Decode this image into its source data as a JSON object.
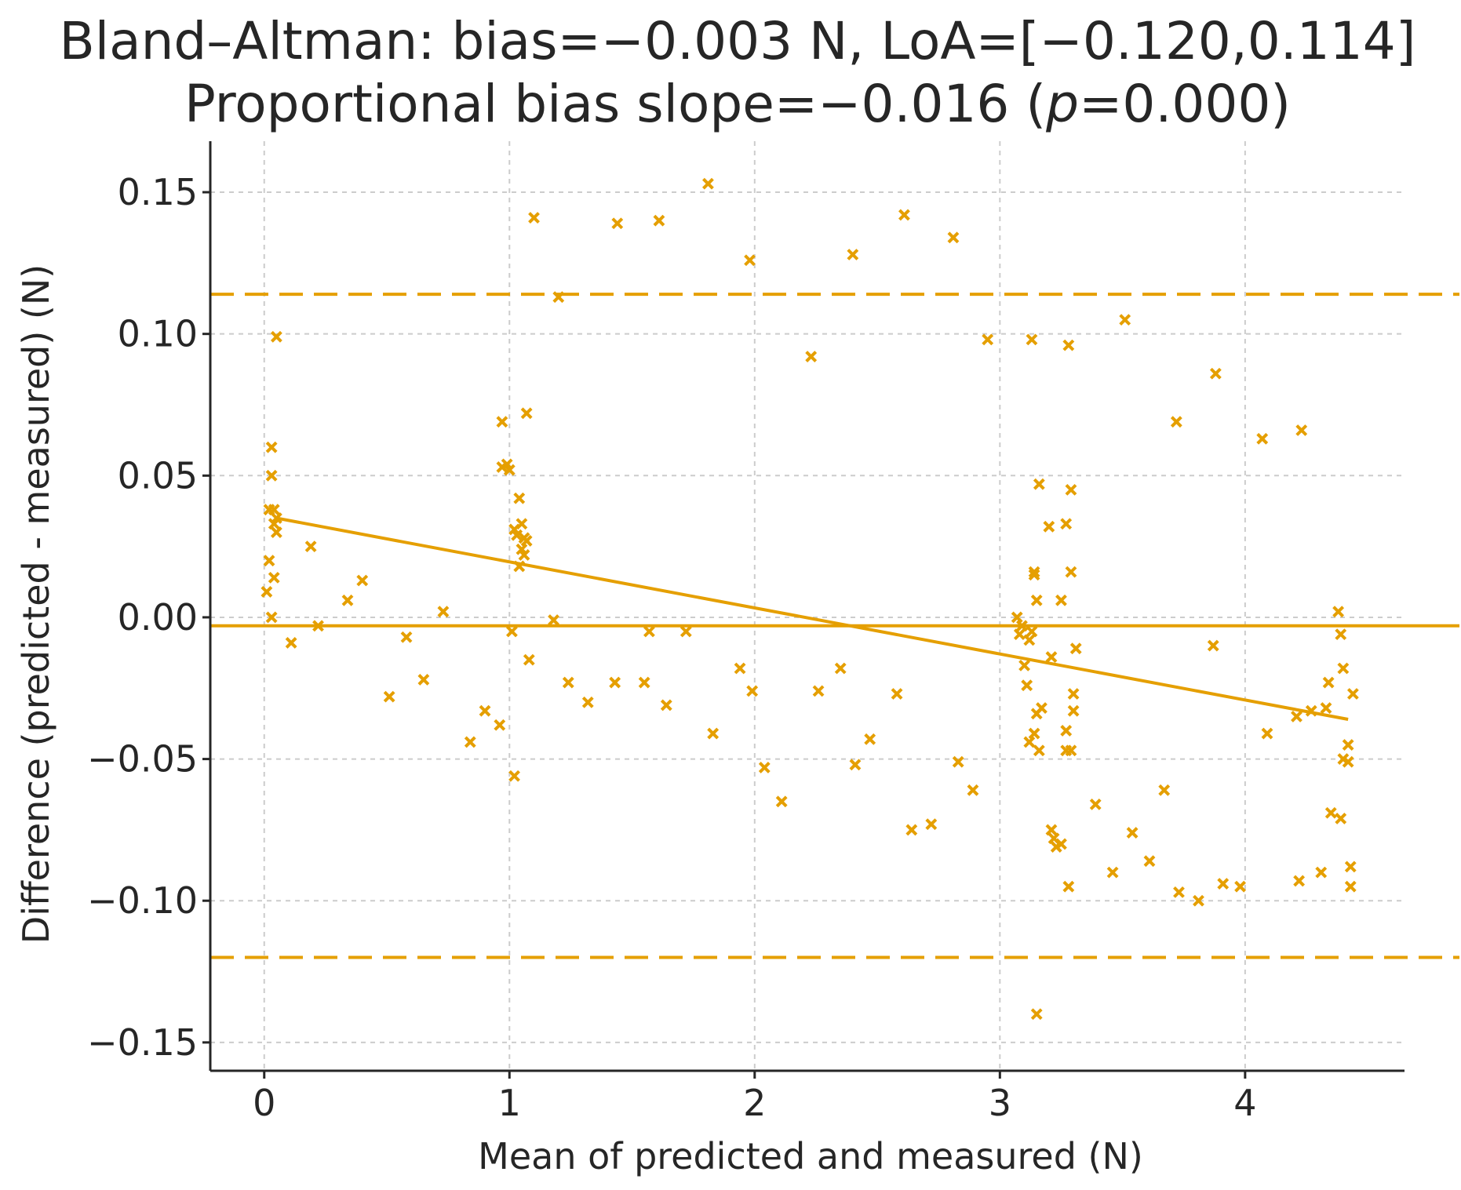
{
  "chart_data": {
    "type": "scatter",
    "title_line1": "Bland–Altman: bias=−0.003 N, LoA=[−0.120,0.114]",
    "title_line2_prefix": "Proportional bias slope=−0.016 (",
    "title_line2_italic": "p",
    "title_line2_suffix": "=0.000)",
    "xlabel": "Mean of predicted and measured (N)",
    "ylabel": "Difference (predicted - measured) (N)",
    "xlim": [
      -0.22,
      4.65
    ],
    "ylim": [
      -0.16,
      0.168
    ],
    "xticks": [
      0,
      1,
      2,
      3,
      4
    ],
    "xtick_labels": [
      "0",
      "1",
      "2",
      "3",
      "4"
    ],
    "yticks": [
      -0.15,
      -0.1,
      -0.05,
      0.0,
      0.05,
      0.1,
      0.15
    ],
    "ytick_labels": [
      "−0.15",
      "−0.10",
      "−0.05",
      "0.00",
      "0.05",
      "0.10",
      "0.15"
    ],
    "grid": true,
    "color": "#e59f00",
    "bias": -0.003,
    "loa_lower": -0.12,
    "loa_upper": 0.114,
    "regression": {
      "x_start": 0.05,
      "y_start": 0.035,
      "x_end": 4.42,
      "y_end": -0.036
    },
    "points": [
      [
        0.01,
        0.009
      ],
      [
        0.02,
        0.02
      ],
      [
        0.02,
        0.038
      ],
      [
        0.03,
        0.05
      ],
      [
        0.03,
        0.06
      ],
      [
        0.04,
        0.038
      ],
      [
        0.04,
        0.033
      ],
      [
        0.05,
        0.03
      ],
      [
        0.05,
        0.035
      ],
      [
        0.04,
        0.014
      ],
      [
        0.03,
        0.0
      ],
      [
        0.05,
        0.099
      ],
      [
        0.11,
        -0.009
      ],
      [
        0.19,
        0.025
      ],
      [
        0.22,
        -0.003
      ],
      [
        0.34,
        0.006
      ],
      [
        0.4,
        0.013
      ],
      [
        0.51,
        -0.028
      ],
      [
        0.58,
        -0.007
      ],
      [
        0.65,
        -0.022
      ],
      [
        0.73,
        0.002
      ],
      [
        0.84,
        -0.044
      ],
      [
        0.9,
        -0.033
      ],
      [
        0.96,
        -0.038
      ],
      [
        0.97,
        0.069
      ],
      [
        0.97,
        0.053
      ],
      [
        0.99,
        0.054
      ],
      [
        1.0,
        0.052
      ],
      [
        1.01,
        -0.005
      ],
      [
        1.02,
        -0.056
      ],
      [
        1.02,
        0.031
      ],
      [
        1.03,
        0.029
      ],
      [
        1.04,
        0.042
      ],
      [
        1.04,
        0.018
      ],
      [
        1.05,
        0.033
      ],
      [
        1.05,
        0.024
      ],
      [
        1.06,
        0.028
      ],
      [
        1.06,
        0.022
      ],
      [
        1.07,
        0.027
      ],
      [
        1.07,
        0.072
      ],
      [
        1.08,
        -0.015
      ],
      [
        1.1,
        0.141
      ],
      [
        1.18,
        -0.001
      ],
      [
        1.2,
        0.113
      ],
      [
        1.24,
        -0.023
      ],
      [
        1.32,
        -0.03
      ],
      [
        1.43,
        -0.023
      ],
      [
        1.44,
        0.139
      ],
      [
        1.55,
        -0.023
      ],
      [
        1.57,
        -0.005
      ],
      [
        1.61,
        0.14
      ],
      [
        1.64,
        -0.031
      ],
      [
        1.72,
        -0.005
      ],
      [
        1.81,
        0.153
      ],
      [
        1.83,
        -0.041
      ],
      [
        1.94,
        -0.018
      ],
      [
        1.98,
        0.126
      ],
      [
        1.99,
        -0.026
      ],
      [
        2.04,
        -0.053
      ],
      [
        2.11,
        -0.065
      ],
      [
        2.23,
        0.092
      ],
      [
        2.26,
        -0.026
      ],
      [
        2.35,
        -0.018
      ],
      [
        2.4,
        0.128
      ],
      [
        2.41,
        -0.052
      ],
      [
        2.47,
        -0.043
      ],
      [
        2.58,
        -0.027
      ],
      [
        2.61,
        0.142
      ],
      [
        2.64,
        -0.075
      ],
      [
        2.72,
        -0.073
      ],
      [
        2.81,
        0.134
      ],
      [
        2.83,
        -0.051
      ],
      [
        2.89,
        -0.061
      ],
      [
        2.95,
        0.098
      ],
      [
        3.07,
        0.0
      ],
      [
        3.08,
        -0.006
      ],
      [
        3.09,
        -0.003
      ],
      [
        3.1,
        -0.017
      ],
      [
        3.11,
        -0.024
      ],
      [
        3.12,
        -0.008
      ],
      [
        3.12,
        -0.044
      ],
      [
        3.13,
        0.098
      ],
      [
        3.13,
        -0.005
      ],
      [
        3.14,
        0.016
      ],
      [
        3.14,
        0.015
      ],
      [
        3.14,
        -0.041
      ],
      [
        3.15,
        0.006
      ],
      [
        3.15,
        -0.034
      ],
      [
        3.15,
        -0.14
      ],
      [
        3.16,
        0.047
      ],
      [
        3.16,
        -0.047
      ],
      [
        3.17,
        -0.032
      ],
      [
        3.2,
        0.032
      ],
      [
        3.21,
        -0.014
      ],
      [
        3.21,
        -0.075
      ],
      [
        3.22,
        -0.078
      ],
      [
        3.23,
        -0.081
      ],
      [
        3.25,
        0.006
      ],
      [
        3.25,
        -0.08
      ],
      [
        3.27,
        0.033
      ],
      [
        3.27,
        -0.04
      ],
      [
        3.27,
        -0.047
      ],
      [
        3.28,
        0.096
      ],
      [
        3.28,
        -0.095
      ],
      [
        3.29,
        0.016
      ],
      [
        3.29,
        0.045
      ],
      [
        3.29,
        -0.047
      ],
      [
        3.3,
        -0.027
      ],
      [
        3.3,
        -0.033
      ],
      [
        3.31,
        -0.011
      ],
      [
        3.39,
        -0.066
      ],
      [
        3.46,
        -0.09
      ],
      [
        3.51,
        0.105
      ],
      [
        3.54,
        -0.076
      ],
      [
        3.61,
        -0.086
      ],
      [
        3.67,
        -0.061
      ],
      [
        3.72,
        0.069
      ],
      [
        3.73,
        -0.097
      ],
      [
        3.81,
        -0.1
      ],
      [
        3.87,
        -0.01
      ],
      [
        3.88,
        0.086
      ],
      [
        3.91,
        -0.094
      ],
      [
        3.98,
        -0.095
      ],
      [
        4.07,
        0.063
      ],
      [
        4.09,
        -0.041
      ],
      [
        4.21,
        -0.035
      ],
      [
        4.22,
        -0.093
      ],
      [
        4.23,
        0.066
      ],
      [
        4.27,
        -0.033
      ],
      [
        4.31,
        -0.09
      ],
      [
        4.33,
        -0.032
      ],
      [
        4.34,
        -0.023
      ],
      [
        4.35,
        -0.069
      ],
      [
        4.38,
        0.002
      ],
      [
        4.39,
        -0.006
      ],
      [
        4.39,
        -0.071
      ],
      [
        4.4,
        -0.018
      ],
      [
        4.4,
        -0.05
      ],
      [
        4.42,
        -0.045
      ],
      [
        4.42,
        -0.051
      ],
      [
        4.43,
        -0.088
      ],
      [
        4.43,
        -0.095
      ],
      [
        4.44,
        -0.027
      ]
    ]
  }
}
